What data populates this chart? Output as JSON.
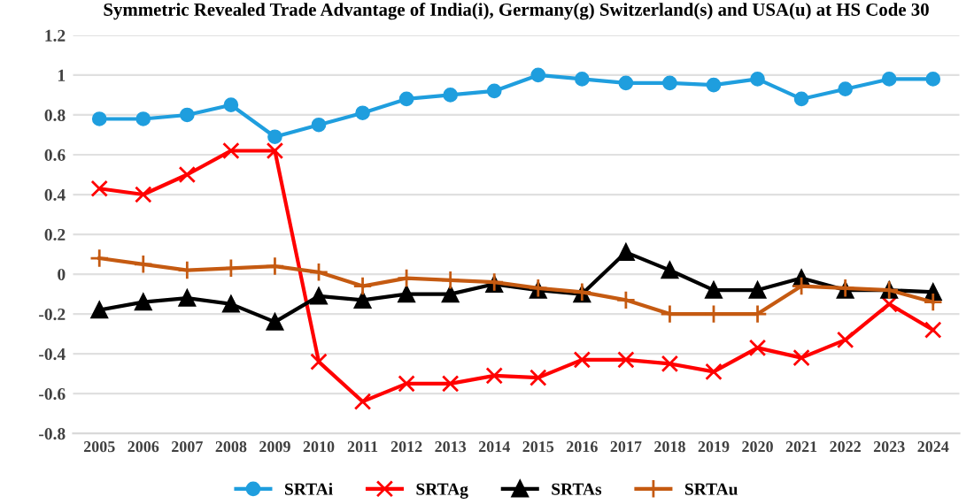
{
  "chart_data": {
    "type": "line",
    "title": "Symmetric Revealed Trade Advantage of India(i), Germany(g) Switzerland(s) and USA(u) at HS Code 30",
    "categories": [
      "2005",
      "2006",
      "2007",
      "2008",
      "2009",
      "2010",
      "2011",
      "2012",
      "2013",
      "2014",
      "2015",
      "2016",
      "2017",
      "2018",
      "2019",
      "2020",
      "2021",
      "2022",
      "2023",
      "2024"
    ],
    "series": [
      {
        "name": "SRTAi",
        "color": "#1f9ede",
        "marker": "circle",
        "values": [
          0.78,
          0.78,
          0.8,
          0.85,
          0.69,
          0.75,
          0.81,
          0.88,
          0.9,
          0.92,
          1.0,
          0.98,
          0.96,
          0.96,
          0.95,
          0.98,
          0.88,
          0.93,
          0.98,
          0.98
        ]
      },
      {
        "name": "SRTAg",
        "color": "#ff0000",
        "marker": "x",
        "values": [
          0.43,
          0.4,
          0.5,
          0.62,
          0.62,
          -0.44,
          -0.64,
          -0.55,
          -0.55,
          -0.51,
          -0.52,
          -0.43,
          -0.43,
          -0.45,
          -0.49,
          -0.37,
          -0.42,
          -0.33,
          -0.15,
          -0.28
        ]
      },
      {
        "name": "SRTAs",
        "color": "#000000",
        "marker": "triangle",
        "values": [
          -0.18,
          -0.14,
          -0.12,
          -0.15,
          -0.24,
          -0.11,
          -0.13,
          -0.1,
          -0.1,
          -0.05,
          -0.08,
          -0.1,
          0.11,
          0.02,
          -0.08,
          -0.08,
          -0.02,
          -0.08,
          -0.08,
          -0.09
        ]
      },
      {
        "name": "SRTAu",
        "color": "#c55a11",
        "marker": "cross",
        "values": [
          0.08,
          0.05,
          0.02,
          0.03,
          0.04,
          0.01,
          -0.06,
          -0.02,
          -0.03,
          -0.04,
          -0.07,
          -0.09,
          -0.13,
          -0.2,
          -0.2,
          -0.2,
          -0.06,
          -0.07,
          -0.08,
          -0.14
        ]
      }
    ],
    "ylim": [
      -0.8,
      1.2
    ],
    "yticks": [
      -0.8,
      -0.6,
      -0.4,
      -0.2,
      0,
      0.2,
      0.4,
      0.6,
      0.8,
      1,
      1.2
    ],
    "grid": "y",
    "legend": "bottom"
  }
}
